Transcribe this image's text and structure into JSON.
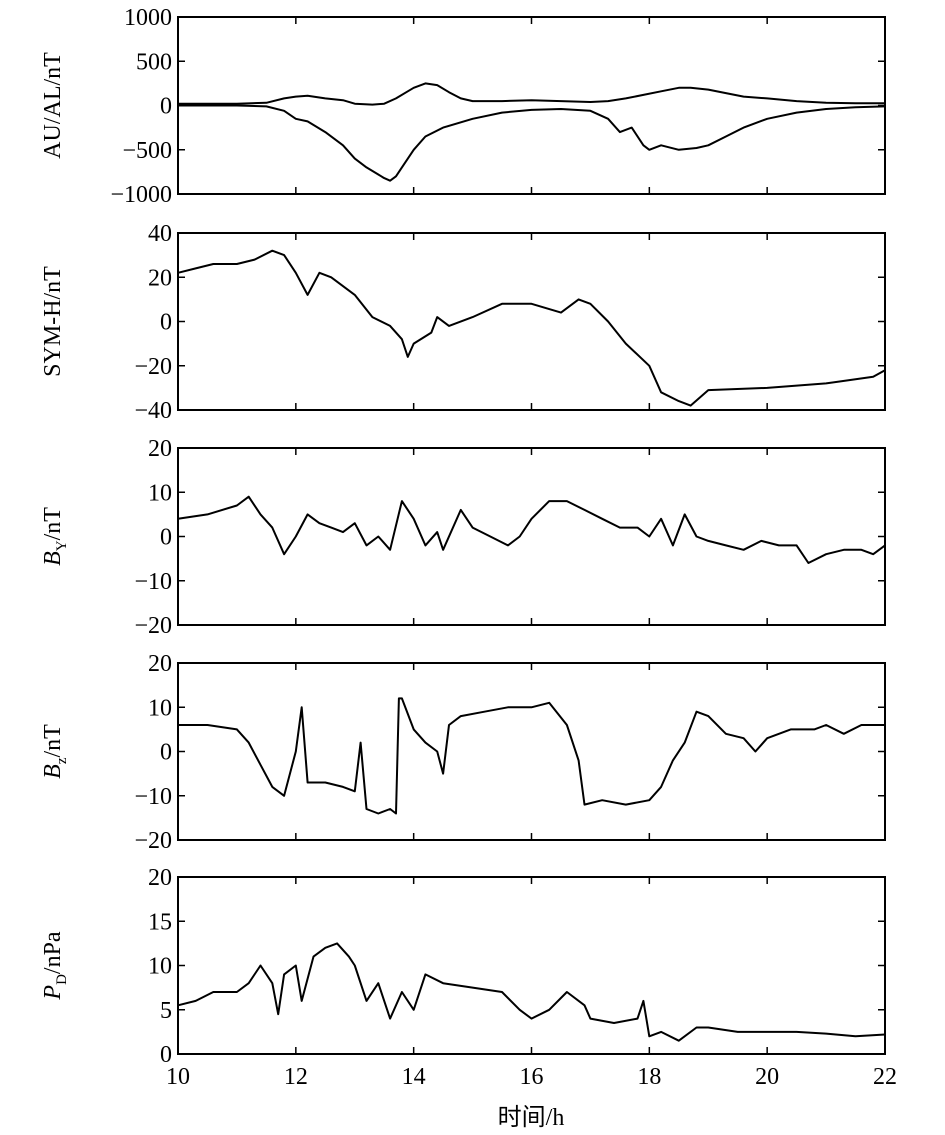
{
  "figure": {
    "xlabel": "时间/h"
  },
  "chart_data": [
    {
      "type": "line",
      "ylabel": "AU/AL/nT",
      "xlim": [
        10,
        22
      ],
      "ylim": [
        -1000,
        1000
      ],
      "yticks": [
        -1000,
        -500,
        0,
        500,
        1000
      ],
      "series": [
        {
          "x": [
            10,
            10.5,
            11,
            11.5,
            11.8,
            12,
            12.2,
            12.5,
            12.8,
            13,
            13.3,
            13.5,
            13.7,
            13.9,
            14,
            14.2,
            14.4,
            14.6,
            14.8,
            15,
            15.5,
            16,
            16.5,
            17,
            17.3,
            17.6,
            17.9,
            18.2,
            18.5,
            18.7,
            19,
            19.3,
            19.6,
            20,
            20.5,
            21,
            21.5,
            22
          ],
          "y": [
            20,
            20,
            20,
            30,
            80,
            100,
            110,
            80,
            60,
            20,
            10,
            20,
            80,
            160,
            200,
            250,
            230,
            150,
            80,
            50,
            50,
            60,
            50,
            40,
            50,
            80,
            120,
            160,
            200,
            200,
            180,
            140,
            100,
            80,
            50,
            30,
            25,
            25
          ]
        },
        {
          "x": [
            10,
            10.5,
            11,
            11.5,
            11.8,
            12,
            12.2,
            12.5,
            12.8,
            13,
            13.2,
            13.4,
            13.5,
            13.6,
            13.7,
            13.8,
            14,
            14.2,
            14.5,
            15,
            15.5,
            16,
            16.5,
            17,
            17.3,
            17.5,
            17.7,
            17.9,
            18,
            18.2,
            18.5,
            18.8,
            19,
            19.3,
            19.6,
            20,
            20.5,
            21,
            21.5,
            22
          ],
          "y": [
            0,
            0,
            0,
            -10,
            -60,
            -150,
            -180,
            -300,
            -450,
            -600,
            -700,
            -780,
            -820,
            -850,
            -800,
            -700,
            -500,
            -350,
            -250,
            -150,
            -80,
            -50,
            -40,
            -60,
            -150,
            -300,
            -250,
            -450,
            -500,
            -450,
            -500,
            -480,
            -450,
            -350,
            -250,
            -150,
            -80,
            -40,
            -20,
            -10
          ]
        }
      ]
    },
    {
      "type": "line",
      "ylabel": "SYM-H/nT",
      "xlim": [
        10,
        22
      ],
      "ylim": [
        -40,
        40
      ],
      "yticks": [
        -40,
        -20,
        0,
        20,
        40
      ],
      "series": [
        {
          "x": [
            10,
            10.3,
            10.6,
            11,
            11.3,
            11.6,
            11.8,
            12,
            12.2,
            12.4,
            12.6,
            13,
            13.3,
            13.6,
            13.8,
            13.9,
            14,
            14.3,
            14.4,
            14.6,
            15,
            15.5,
            16,
            16.5,
            16.8,
            17,
            17.3,
            17.6,
            18,
            18.2,
            18.5,
            18.7,
            19,
            20,
            21,
            21.8,
            22
          ],
          "y": [
            22,
            24,
            26,
            26,
            28,
            32,
            30,
            22,
            12,
            22,
            20,
            12,
            2,
            -2,
            -8,
            -16,
            -10,
            -5,
            2,
            -2,
            2,
            8,
            8,
            4,
            10,
            8,
            0,
            -10,
            -20,
            -32,
            -36,
            -38,
            -31,
            -30,
            -28,
            -25,
            -22
          ]
        }
      ]
    },
    {
      "type": "line",
      "ylabel_main": "B",
      "ylabel_sub": "Y",
      "ylabel_rest": "/nT",
      "xlim": [
        10,
        22
      ],
      "ylim": [
        -20,
        20
      ],
      "yticks": [
        -20,
        -10,
        0,
        10,
        20
      ],
      "series": [
        {
          "x": [
            10,
            10.5,
            11,
            11.2,
            11.4,
            11.6,
            11.8,
            12,
            12.2,
            12.4,
            12.6,
            12.8,
            13,
            13.2,
            13.4,
            13.6,
            13.8,
            14,
            14.2,
            14.4,
            14.5,
            14.8,
            15,
            15.3,
            15.6,
            15.8,
            16,
            16.3,
            16.6,
            16.9,
            17.2,
            17.5,
            17.8,
            18,
            18.2,
            18.4,
            18.6,
            18.8,
            19,
            19.3,
            19.6,
            19.9,
            20.2,
            20.5,
            20.7,
            21,
            21.3,
            21.6,
            21.8,
            22
          ],
          "y": [
            4,
            5,
            7,
            9,
            5,
            2,
            -4,
            0,
            5,
            3,
            2,
            1,
            3,
            -2,
            0,
            -3,
            8,
            4,
            -2,
            1,
            -3,
            6,
            2,
            0,
            -2,
            0,
            4,
            8,
            8,
            6,
            4,
            2,
            2,
            0,
            4,
            -2,
            5,
            0,
            -1,
            -2,
            -3,
            -1,
            -2,
            -2,
            -6,
            -4,
            -3,
            -3,
            -4,
            -2
          ]
        }
      ]
    },
    {
      "type": "line",
      "ylabel_main": "B",
      "ylabel_sub": "z",
      "ylabel_rest": "/nT",
      "xlim": [
        10,
        22
      ],
      "ylim": [
        -20,
        20
      ],
      "yticks": [
        -20,
        -10,
        0,
        10,
        20
      ],
      "series": [
        {
          "x": [
            10,
            10.5,
            11,
            11.2,
            11.4,
            11.6,
            11.8,
            12,
            12.1,
            12.2,
            12.5,
            12.8,
            13,
            13.1,
            13.2,
            13.4,
            13.6,
            13.7,
            13.75,
            13.8,
            14,
            14.2,
            14.4,
            14.5,
            14.6,
            14.8,
            15.2,
            15.6,
            16,
            16.3,
            16.6,
            16.8,
            16.9,
            17.2,
            17.6,
            18,
            18.2,
            18.4,
            18.6,
            18.8,
            19,
            19.3,
            19.6,
            19.8,
            20,
            20.4,
            20.8,
            21,
            21.3,
            21.6,
            22
          ],
          "y": [
            6,
            6,
            5,
            2,
            -3,
            -8,
            -10,
            0,
            10,
            -7,
            -7,
            -8,
            -9,
            2,
            -13,
            -14,
            -13,
            -14,
            12,
            12,
            5,
            2,
            0,
            -5,
            6,
            8,
            9,
            10,
            10,
            11,
            6,
            -2,
            -12,
            -11,
            -12,
            -11,
            -8,
            -2,
            2,
            9,
            8,
            4,
            3,
            0,
            3,
            5,
            5,
            6,
            4,
            6,
            6
          ]
        }
      ]
    },
    {
      "type": "line",
      "ylabel_main": "P",
      "ylabel_sub": "D",
      "ylabel_rest": "/nPa",
      "xlim": [
        10,
        22
      ],
      "ylim": [
        0,
        20
      ],
      "yticks": [
        0,
        5,
        10,
        15,
        20
      ],
      "series": [
        {
          "x": [
            10,
            10.3,
            10.6,
            11,
            11.2,
            11.4,
            11.6,
            11.7,
            11.8,
            12,
            12.1,
            12.3,
            12.5,
            12.7,
            12.9,
            13,
            13.2,
            13.4,
            13.6,
            13.8,
            14,
            14.2,
            14.5,
            15,
            15.5,
            15.8,
            16,
            16.3,
            16.6,
            16.9,
            17,
            17.4,
            17.8,
            17.9,
            18,
            18.2,
            18.5,
            18.8,
            19,
            19.5,
            20,
            20.5,
            21,
            21.5,
            22
          ],
          "y": [
            5.5,
            6,
            7,
            7,
            8,
            10,
            8,
            4.5,
            9,
            10,
            6,
            11,
            12,
            12.5,
            11,
            10,
            6,
            8,
            4,
            7,
            5,
            9,
            8,
            7.5,
            7,
            5,
            4,
            5,
            7,
            5.5,
            4,
            3.5,
            4,
            6,
            2,
            2.5,
            1.5,
            3,
            3,
            2.5,
            2.5,
            2.5,
            2.3,
            2,
            2.2
          ]
        }
      ]
    }
  ]
}
